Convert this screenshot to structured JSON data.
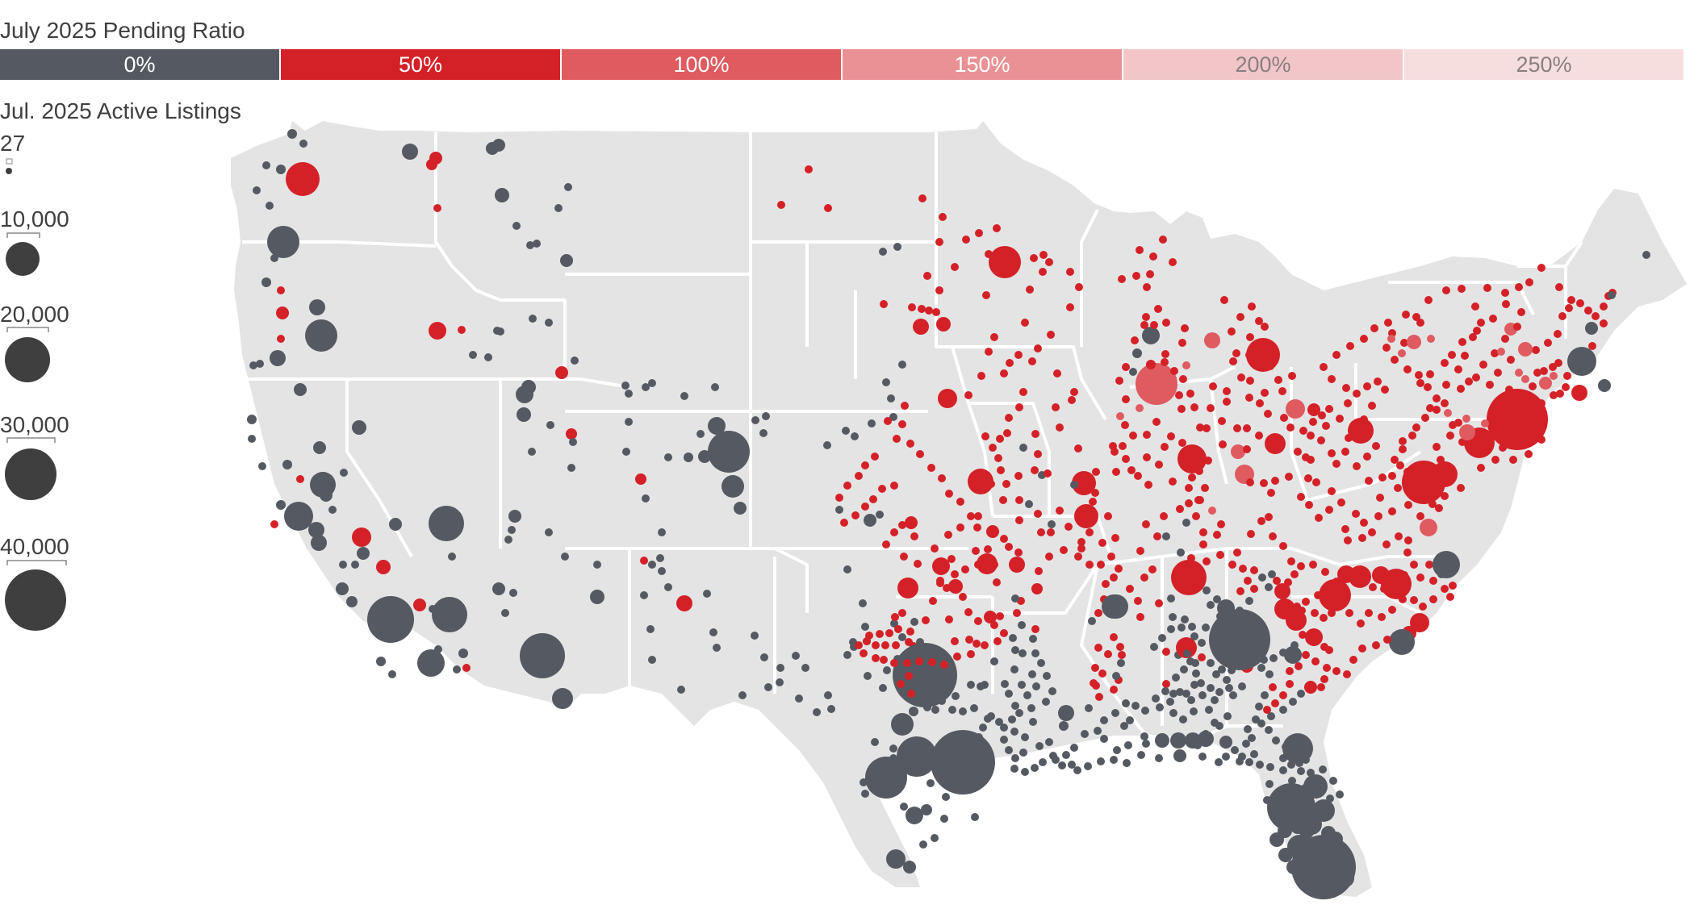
{
  "legend": {
    "pending_title": "July 2025 Pending Ratio",
    "ratio_bins": [
      {
        "label": "0%",
        "color": "#555a62"
      },
      {
        "label": "50%",
        "color": "#d42127"
      },
      {
        "label": "100%",
        "color": "#df5b60"
      },
      {
        "label": "150%",
        "color": "#e99195"
      },
      {
        "label": "200%",
        "color": "#f2c6c8"
      },
      {
        "label": "250%",
        "color": "#f6dedf"
      }
    ],
    "listings_title": "Jul. 2025 Active Listings",
    "sizes": [
      {
        "label": "27",
        "value": 27
      },
      {
        "label": "10,000",
        "value": 10000
      },
      {
        "label": "20,000",
        "value": 20000
      },
      {
        "label": "30,000",
        "value": 30000
      },
      {
        "label": "40,000",
        "value": 40000
      }
    ]
  },
  "colors": {
    "land": "#e4e4e5",
    "border": "#ffffff",
    "gray_bubble": "#555a62",
    "red_bubble": "#d42127",
    "pink_bubble": "#df5b60",
    "light_pink_bubble": "#e99195"
  }
}
